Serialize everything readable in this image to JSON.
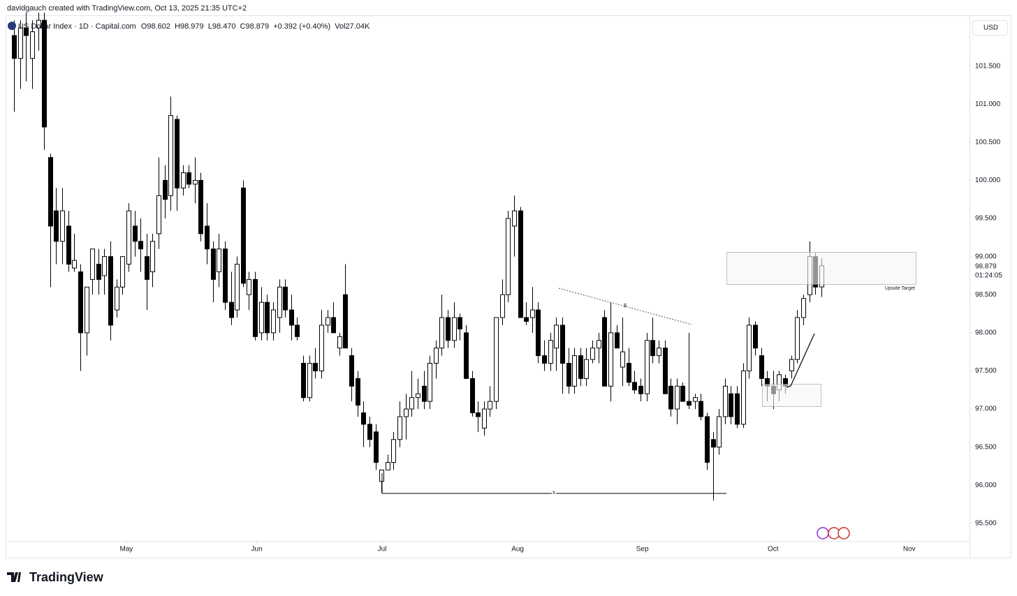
{
  "header": {
    "byline": "davidgauch created with TradingView.com, Oct 13, 2025 21:35 UTC+2",
    "symbol": "US Dollar Index · 1D · Capital.com",
    "o": "O98.602",
    "h": "H98.979",
    "l": "L98.470",
    "c": "C98.879",
    "change": "+0.392 (+0.40%)",
    "vol": "Vol27.04K",
    "currency": "USD"
  },
  "chart_data": {
    "type": "candlestick",
    "open": [
      101.9,
      101.6,
      102.0,
      101.6,
      102.0,
      102.1,
      100.3,
      99.6,
      99.2,
      99.4,
      98.85,
      98.8,
      98.0,
      98.7,
      98.9,
      98.75,
      99.0,
      98.3,
      98.6,
      98.9,
      99.4,
      99.2,
      99.0,
      98.8,
      99.3,
      100.0,
      99.8,
      100.8,
      99.9,
      100.1,
      99.95,
      100.0,
      99.4,
      99.1,
      98.8,
      99.1,
      98.4,
      98.3,
      99.9,
      98.5,
      98.7,
      98.0,
      98.4,
      98.0,
      98.2,
      98.6,
      98.3,
      98.1,
      97.6,
      97.15,
      97.6,
      97.5,
      98.1,
      98.2,
      97.8,
      98.5,
      97.7,
      97.4,
      96.95,
      96.8,
      96.7,
      96.05,
      96.2,
      96.3,
      96.6,
      96.9,
      97.0,
      97.15,
      97.3,
      97.1,
      97.6,
      97.8,
      98.2,
      97.9,
      98.2,
      98.0,
      97.4,
      96.95,
      96.75,
      97.0,
      97.1,
      98.2,
      98.5,
      99.4,
      99.6,
      98.2,
      98.2,
      98.3,
      97.7,
      97.6,
      97.8,
      98.1,
      97.6,
      97.3,
      97.7,
      97.4,
      97.65,
      97.8,
      98.2,
      97.3,
      98.0,
      97.55,
      97.6,
      97.35,
      97.3,
      97.2,
      97.9,
      97.7,
      97.8,
      97.3,
      97.0,
      97.3,
      97.1,
      97.1,
      97.1,
      96.9,
      96.6,
      96.5,
      96.9,
      97.2,
      97.2,
      96.8,
      97.5,
      98.1,
      97.7,
      97.4,
      97.3,
      97.25,
      97.4,
      97.5,
      97.65,
      98.2,
      98.5,
      99.0,
      98.602
    ],
    "high": [
      102.1,
      102.1,
      102.2,
      102.1,
      102.2,
      102.2,
      100.35,
      99.9,
      99.9,
      99.6,
      99.3,
      98.9,
      98.6,
      99.1,
      99.1,
      99.1,
      99.2,
      98.7,
      99.0,
      99.7,
      99.6,
      99.5,
      99.3,
      99.3,
      100.3,
      100.2,
      101.1,
      100.85,
      100.2,
      100.2,
      100.3,
      100.1,
      99.7,
      99.2,
      99.3,
      99.2,
      98.8,
      99.0,
      100.0,
      98.8,
      98.8,
      98.6,
      98.5,
      98.4,
      98.7,
      98.7,
      98.5,
      98.2,
      97.7,
      97.7,
      97.8,
      98.3,
      98.3,
      98.4,
      98.0,
      98.9,
      97.8,
      97.5,
      97.1,
      96.9,
      96.8,
      96.2,
      96.4,
      96.7,
      97.1,
      97.2,
      97.5,
      97.4,
      97.5,
      97.7,
      97.9,
      98.5,
      98.3,
      98.4,
      98.25,
      98.1,
      97.5,
      97.1,
      97.1,
      97.3,
      98.2,
      98.7,
      99.6,
      99.8,
      99.65,
      98.4,
      98.6,
      98.4,
      97.9,
      98.0,
      98.2,
      98.2,
      97.8,
      97.8,
      97.8,
      97.8,
      97.9,
      98.0,
      98.3,
      98.4,
      98.1,
      98.2,
      97.8,
      97.5,
      97.4,
      98.0,
      98.2,
      97.9,
      97.9,
      97.4,
      97.4,
      97.35,
      98.0,
      97.2,
      97.2,
      96.95,
      96.7,
      97.0,
      97.4,
      97.3,
      97.3,
      97.6,
      98.2,
      98.15,
      97.8,
      97.5,
      97.5,
      97.5,
      97.45,
      97.7,
      98.3,
      98.5,
      99.2,
      99.05,
      98.979
    ],
    "low": [
      100.9,
      101.2,
      101.3,
      101.2,
      101.7,
      100.4,
      98.6,
      98.9,
      98.9,
      98.8,
      98.8,
      97.5,
      97.7,
      98.5,
      98.5,
      98.5,
      97.9,
      98.2,
      98.5,
      98.8,
      99.0,
      98.8,
      98.3,
      98.6,
      99.1,
      99.5,
      99.6,
      99.6,
      99.8,
      99.9,
      99.7,
      99.2,
      98.9,
      98.4,
      98.6,
      98.3,
      98.1,
      98.2,
      98.6,
      98.3,
      97.9,
      97.9,
      97.9,
      97.9,
      98.0,
      98.2,
      97.9,
      97.9,
      97.1,
      97.1,
      97.4,
      97.4,
      98.0,
      98.0,
      97.7,
      97.8,
      97.1,
      96.9,
      96.5,
      96.5,
      96.2,
      95.9,
      96.2,
      96.2,
      96.5,
      96.6,
      96.9,
      97.0,
      97.0,
      97.0,
      97.4,
      97.7,
      97.8,
      97.8,
      97.9,
      97.4,
      96.9,
      96.7,
      96.65,
      96.9,
      97.0,
      98.1,
      98.4,
      99.0,
      98.2,
      98.1,
      98.0,
      97.6,
      97.5,
      97.5,
      97.5,
      97.2,
      97.2,
      97.2,
      97.3,
      97.3,
      97.6,
      97.6,
      97.3,
      97.1,
      97.8,
      97.3,
      97.3,
      97.2,
      97.1,
      97.1,
      97.6,
      97.6,
      97.2,
      96.9,
      96.8,
      97.1,
      97.0,
      97.0,
      96.85,
      96.2,
      95.8,
      96.4,
      96.8,
      96.8,
      96.75,
      96.75,
      97.4,
      97.7,
      97.3,
      97.1,
      97.0,
      97.1,
      97.2,
      97.4,
      97.6,
      98.1,
      98.4,
      98.5,
      98.47
    ],
    "close": [
      101.6,
      102.0,
      101.9,
      101.95,
      102.1,
      100.7,
      99.4,
      99.2,
      99.6,
      98.9,
      98.95,
      98.0,
      98.6,
      99.1,
      98.7,
      99.0,
      98.1,
      98.6,
      99.0,
      99.6,
      99.2,
      99.1,
      98.7,
      99.2,
      99.8,
      99.75,
      100.85,
      99.9,
      100.1,
      99.95,
      100.0,
      99.3,
      99.1,
      98.7,
      99.1,
      98.4,
      98.2,
      98.9,
      98.65,
      98.7,
      97.95,
      98.4,
      98.0,
      98.3,
      98.6,
      98.3,
      98.1,
      97.95,
      97.15,
      97.6,
      97.5,
      98.1,
      98.2,
      98.0,
      97.95,
      97.8,
      97.3,
      97.05,
      96.8,
      96.6,
      96.3,
      96.2,
      96.3,
      96.6,
      96.9,
      97.0,
      97.15,
      97.2,
      97.1,
      97.6,
      97.8,
      98.2,
      97.9,
      98.2,
      98.05,
      97.4,
      96.95,
      96.9,
      97.0,
      97.1,
      98.2,
      98.5,
      99.5,
      99.6,
      98.2,
      98.15,
      98.3,
      97.7,
      97.6,
      97.9,
      98.1,
      97.6,
      97.3,
      97.7,
      97.4,
      97.65,
      97.8,
      97.9,
      97.3,
      98.0,
      97.8,
      97.75,
      97.35,
      97.25,
      97.2,
      97.9,
      97.7,
      97.8,
      97.2,
      97.0,
      97.3,
      97.1,
      97.05,
      97.15,
      96.9,
      96.3,
      96.5,
      96.9,
      97.3,
      96.9,
      96.8,
      97.5,
      98.1,
      97.8,
      97.4,
      97.3,
      97.2,
      97.45,
      97.3,
      97.65,
      98.2,
      98.45,
      99.0,
      98.6,
      98.879
    ],
    "up_color": "#ffffff",
    "down_color": "#000000",
    "edge_color": "#000000",
    "ylim": [
      95.27,
      102.11
    ],
    "yticks": [
      {
        "value": 95.5,
        "label": "95.500"
      },
      {
        "value": 96,
        "label": "96.000"
      },
      {
        "value": 96.5,
        "label": "96.500"
      },
      {
        "value": 97,
        "label": "97.000"
      },
      {
        "value": 97.5,
        "label": "97.500"
      },
      {
        "value": 98,
        "label": "98.000"
      },
      {
        "value": 98.5,
        "label": "98.500"
      },
      {
        "value": 99,
        "label": "99.000"
      },
      {
        "value": 99.5,
        "label": "99.500"
      },
      {
        "value": 100,
        "label": "100.000"
      },
      {
        "value": 100.5,
        "label": "100.500"
      },
      {
        "value": 101,
        "label": "101.000"
      },
      {
        "value": 101.5,
        "label": "101.500"
      }
    ],
    "xlim": [
      -1.16,
      158.6
    ],
    "xticks": [
      {
        "value": 18.66,
        "label": "May"
      },
      {
        "value": 40.3,
        "label": "Jun"
      },
      {
        "value": 61.1,
        "label": "Jul"
      },
      {
        "value": 83.6,
        "label": "Aug"
      },
      {
        "value": 104.3,
        "label": "Sep"
      },
      {
        "value": 126,
        "label": "Oct"
      },
      {
        "value": 148.6,
        "label": "Nov"
      }
    ],
    "last_price": "98.879",
    "countdown": "01:24:05",
    "annotations": {
      "target": "Upside Target",
      "range_mark": "x",
      "trend_mark": "$"
    }
  },
  "footer": {
    "logo": "TradingView"
  }
}
